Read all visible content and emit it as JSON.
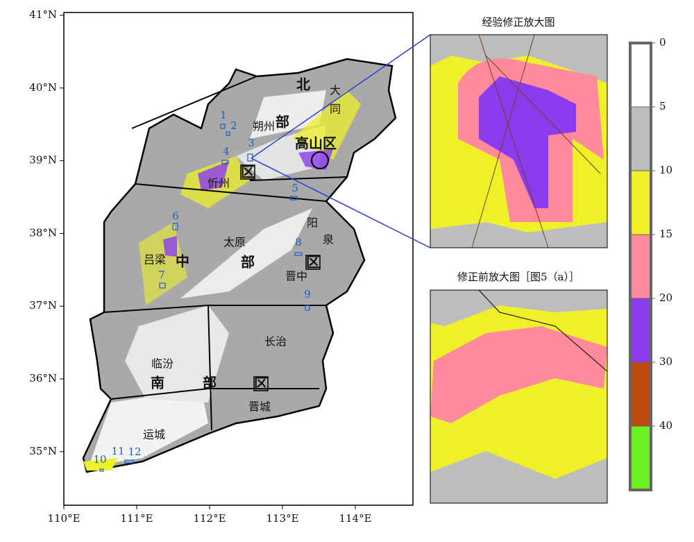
{
  "map": {
    "lat_ticks": [
      {
        "value": 41,
        "label": "41°N"
      },
      {
        "value": 40,
        "label": "40°N"
      },
      {
        "value": 39,
        "label": "39°N"
      },
      {
        "value": 38,
        "label": "38°N"
      },
      {
        "value": 37,
        "label": "37°N"
      },
      {
        "value": 36,
        "label": "36°N"
      },
      {
        "value": 35,
        "label": "35°N"
      }
    ],
    "lon_ticks": [
      {
        "value": 110,
        "label": "110°E"
      },
      {
        "value": 111,
        "label": "111°E"
      },
      {
        "value": 112,
        "label": "112°E"
      },
      {
        "value": 113,
        "label": "113°E"
      },
      {
        "value": 114,
        "label": "114°E"
      }
    ],
    "regions": [
      "北",
      "大",
      "同",
      "朔州",
      "部",
      "高山区",
      "区",
      "忻州",
      "太原",
      "阳",
      "泉",
      "吕梁",
      "中",
      "部",
      "区",
      "晋中",
      "长治",
      "临汾",
      "南",
      "部",
      "区",
      "晋城",
      "运城"
    ],
    "sites": [
      "1",
      "2",
      "3",
      "4",
      "5",
      "6",
      "7",
      "8",
      "9",
      "10",
      "11",
      "12"
    ]
  },
  "insets": [
    {
      "title": "经验修正放大图"
    },
    {
      "title": "修正前放大图［图5（a）］"
    }
  ],
  "legend": {
    "ticks": [
      0,
      5,
      10,
      15,
      20,
      30,
      40
    ],
    "colors": [
      "#ffffff",
      "#bdbdbd",
      "#eef02a",
      "#ff8a9c",
      "#8b3cf0",
      "#c04a10",
      "#6cf020"
    ]
  }
}
